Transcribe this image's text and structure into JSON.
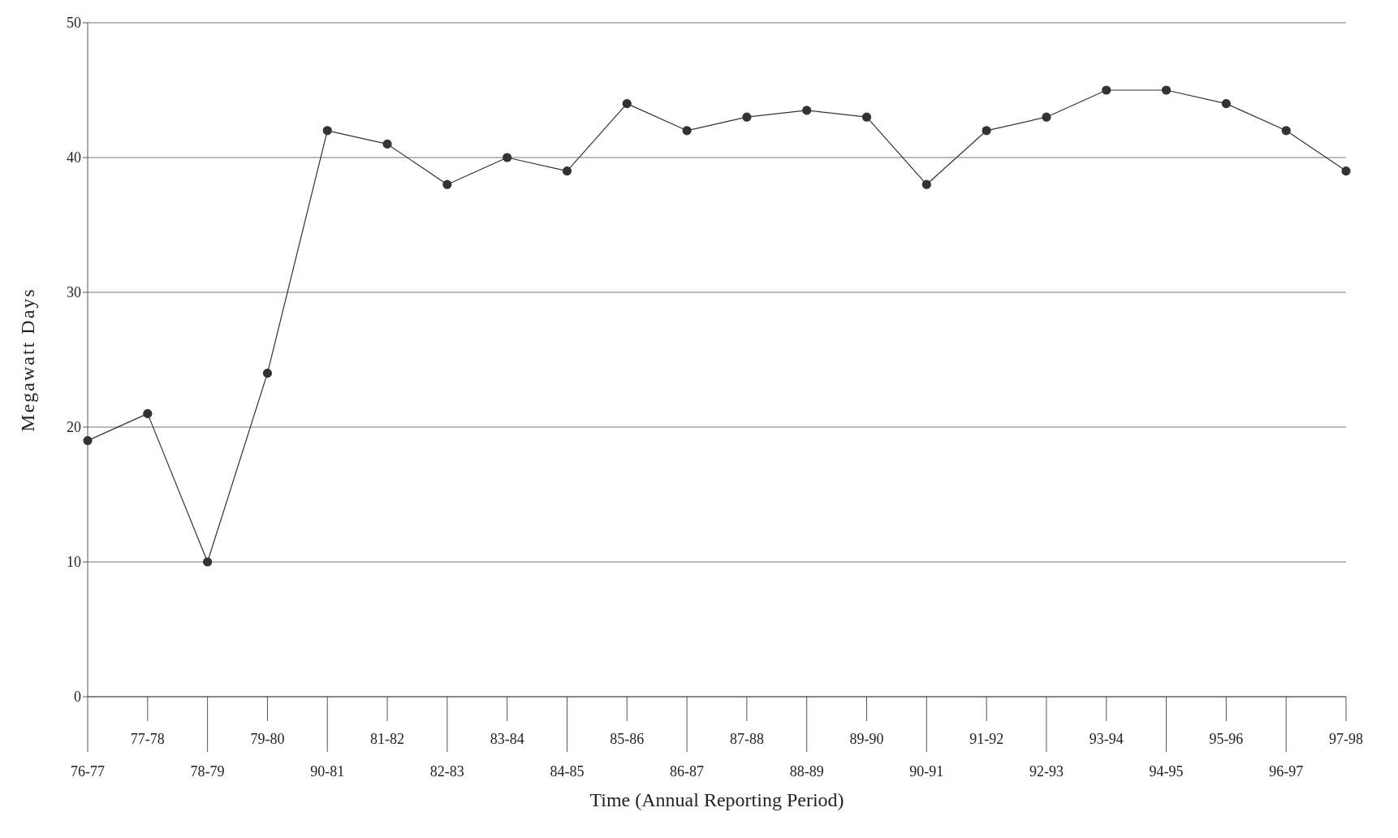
{
  "chart_data": {
    "type": "line",
    "xlabel": "Time (Annual Reporting Period)",
    "ylabel": "Megawatt Days",
    "categories": [
      "76-77",
      "77-78",
      "78-79",
      "79-80",
      "90-81",
      "81-82",
      "82-83",
      "83-84",
      "84-85",
      "85-86",
      "86-87",
      "87-88",
      "88-89",
      "89-90",
      "90-91",
      "91-92",
      "92-93",
      "93-94",
      "94-95",
      "95-96",
      "96-97",
      "97-98"
    ],
    "series": [
      {
        "color": "#333333",
        "values": [
          19,
          21,
          10,
          24,
          42,
          41,
          38,
          40,
          39,
          44,
          42,
          43,
          43.5,
          43,
          38,
          42,
          43,
          45,
          45,
          44,
          42,
          39
        ]
      }
    ],
    "ylim": [
      0,
      50
    ],
    "yticks": [
      0,
      10,
      20,
      30,
      40,
      50
    ],
    "grid": "y",
    "marker": "circle",
    "line_style": "solid"
  }
}
